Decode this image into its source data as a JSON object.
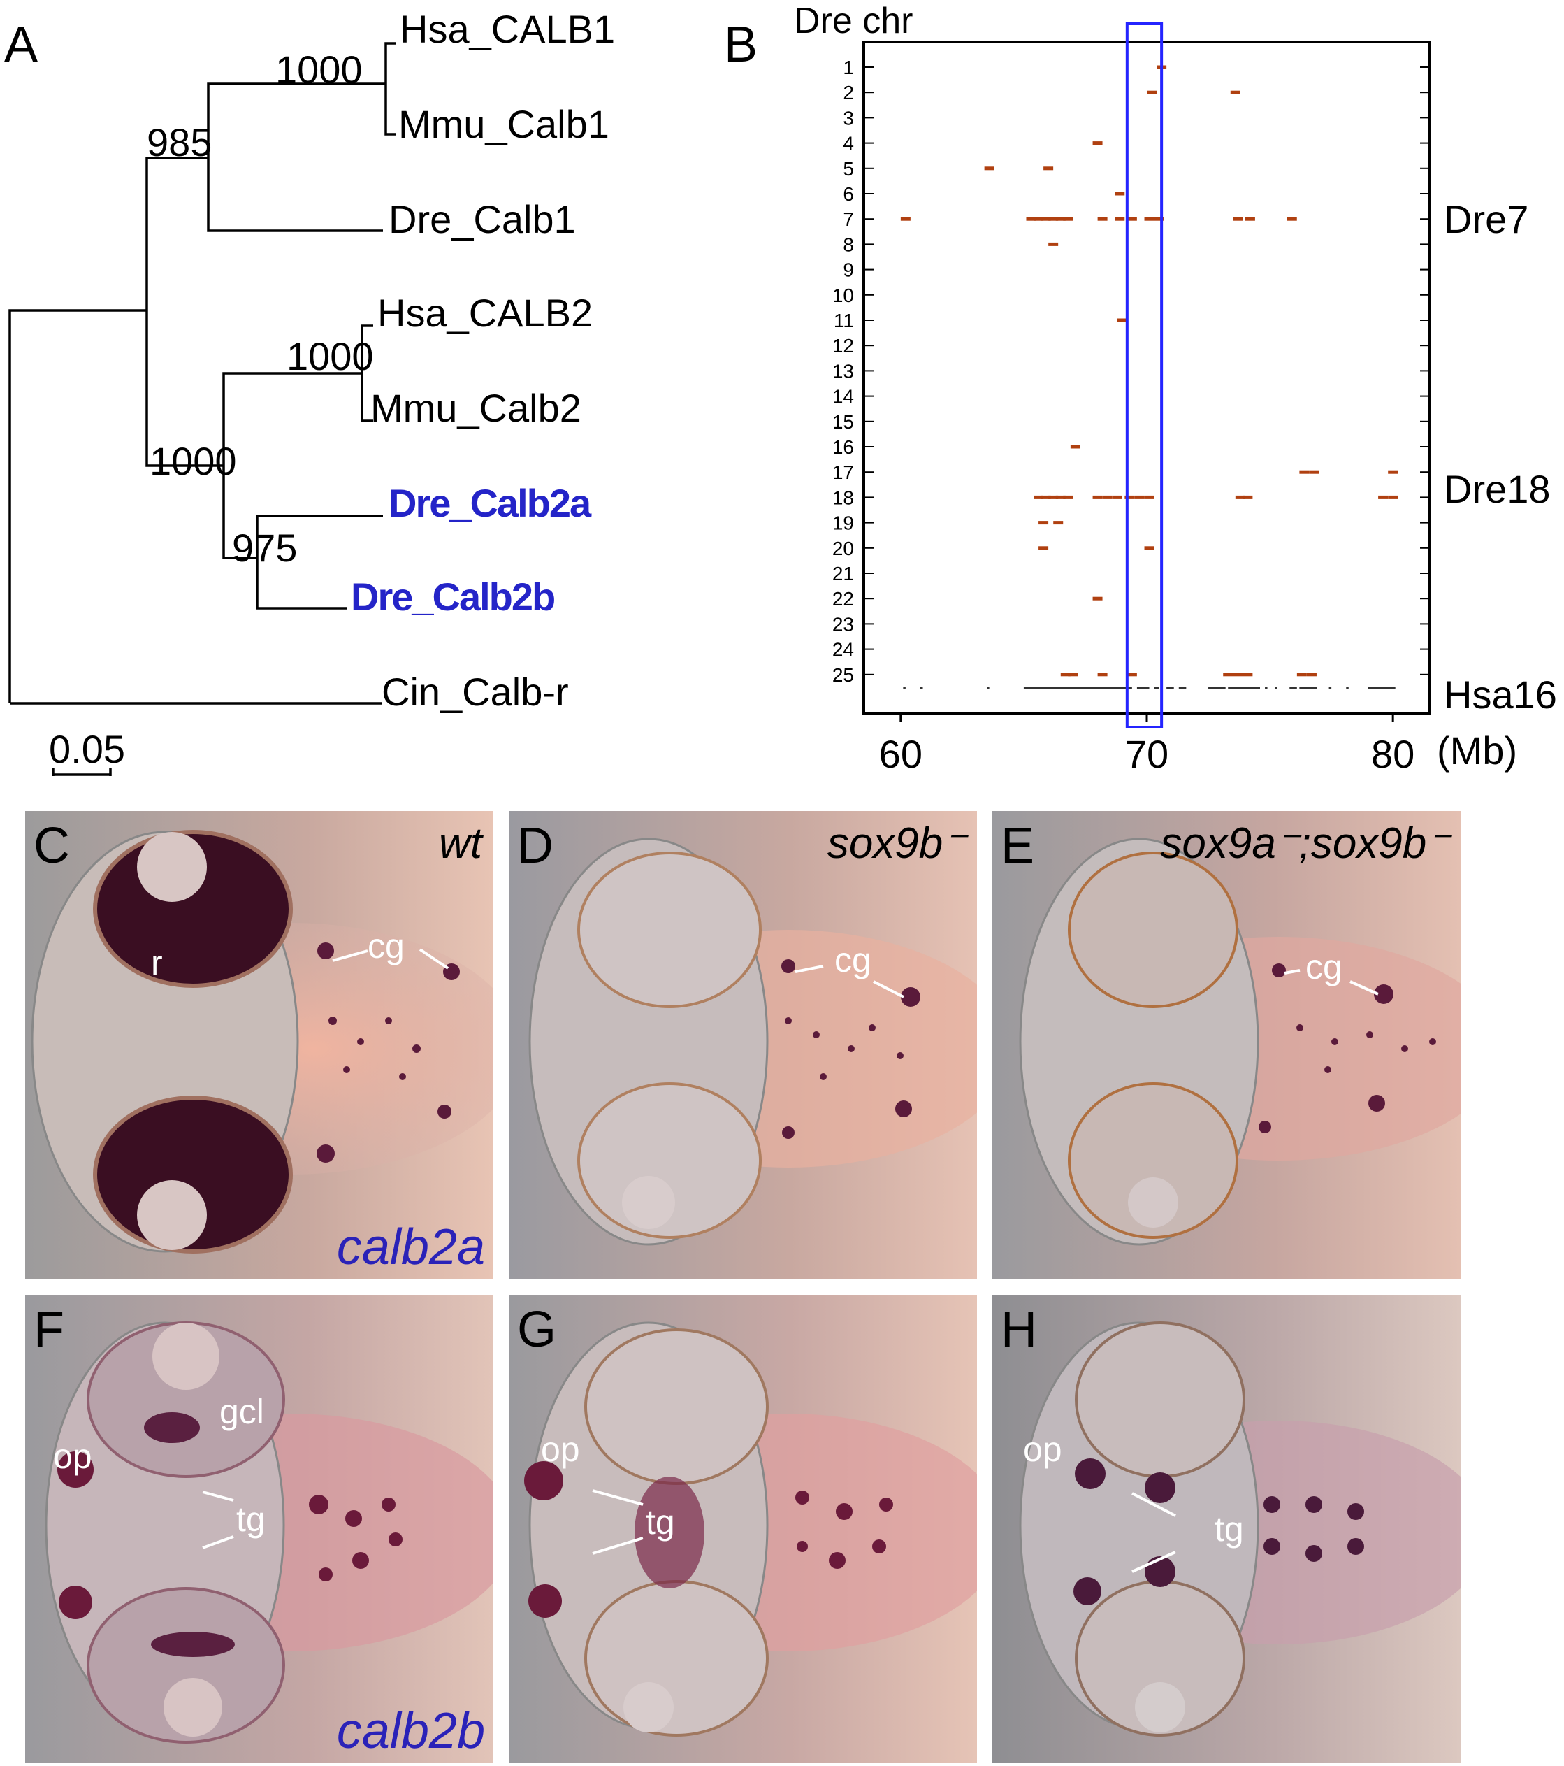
{
  "panels": {
    "a": {
      "label": "A",
      "taxa": [
        "Hsa_CALB1",
        "Mmu_Calb1",
        "Dre_Calb1",
        "Hsa_CALB2",
        "Mmu_Calb2",
        "Dre_Calb2a",
        "Dre_Calb2b",
        "Cin_Calb-r"
      ],
      "bootstrap": [
        "1000",
        "985",
        "1000",
        "1000",
        "975"
      ],
      "scale_label": "0.05",
      "highlight_color": "#2424c8"
    },
    "b": {
      "label": "B",
      "y_title": "Dre chr",
      "x_unit": "(Mb)",
      "right_labels": [
        "Dre7",
        "Dre18",
        "Hsa16"
      ],
      "highlight_color": "#2424ff",
      "dot_color": "#b04010"
    },
    "c": {
      "label": "C",
      "genotype": "wt",
      "gene": "calb2a",
      "annotations": [
        "r",
        "cg"
      ]
    },
    "d": {
      "label": "D",
      "genotype": "sox9b⁻",
      "annotations": [
        "cg"
      ]
    },
    "e": {
      "label": "E",
      "genotype": "sox9a⁻;sox9b⁻",
      "annotations": [
        "cg"
      ]
    },
    "f": {
      "label": "F",
      "gene": "calb2b",
      "annotations": [
        "op",
        "gcl",
        "tg"
      ]
    },
    "g": {
      "label": "G",
      "annotations": [
        "op",
        "tg"
      ]
    },
    "h": {
      "label": "H",
      "annotations": [
        "op",
        "tg"
      ]
    }
  },
  "chart_data": {
    "type": "scatter",
    "xlabel": "(Mb)",
    "ylabel": "Dre chr",
    "xlim": [
      58.5,
      81.5
    ],
    "xticks": [
      60,
      70,
      80
    ],
    "yticks": [
      "1",
      "2",
      "3",
      "4",
      "5",
      "6",
      "7",
      "8",
      "9",
      "10",
      "11",
      "12",
      "13",
      "14",
      "15",
      "16",
      "17",
      "18",
      "19",
      "20",
      "21",
      "22",
      "23",
      "24",
      "25"
    ],
    "highlight_x_range": [
      69.2,
      70.6
    ],
    "points": [
      {
        "chr": 1,
        "x": 70.6
      },
      {
        "chr": 2,
        "x": 70.2
      },
      {
        "chr": 2,
        "x": 73.6
      },
      {
        "chr": 4,
        "x": 68.0
      },
      {
        "chr": 5,
        "x": 63.6
      },
      {
        "chr": 5,
        "x": 66.0
      },
      {
        "chr": 6,
        "x": 68.9
      },
      {
        "chr": 7,
        "x": 60.2
      },
      {
        "chr": 7,
        "x": 65.3
      },
      {
        "chr": 7,
        "x": 65.6
      },
      {
        "chr": 7,
        "x": 65.9
      },
      {
        "chr": 7,
        "x": 66.2
      },
      {
        "chr": 7,
        "x": 66.5
      },
      {
        "chr": 7,
        "x": 66.8
      },
      {
        "chr": 7,
        "x": 68.2
      },
      {
        "chr": 7,
        "x": 68.9
      },
      {
        "chr": 7,
        "x": 69.4
      },
      {
        "chr": 7,
        "x": 70.1
      },
      {
        "chr": 7,
        "x": 70.5
      },
      {
        "chr": 7,
        "x": 73.7
      },
      {
        "chr": 7,
        "x": 74.2
      },
      {
        "chr": 7,
        "x": 75.9
      },
      {
        "chr": 8,
        "x": 66.2
      },
      {
        "chr": 11,
        "x": 69.0
      },
      {
        "chr": 16,
        "x": 67.1
      },
      {
        "chr": 17,
        "x": 76.4
      },
      {
        "chr": 17,
        "x": 76.8
      },
      {
        "chr": 17,
        "x": 80.0
      },
      {
        "chr": 18,
        "x": 65.6
      },
      {
        "chr": 18,
        "x": 65.9
      },
      {
        "chr": 18,
        "x": 66.2
      },
      {
        "chr": 18,
        "x": 66.5
      },
      {
        "chr": 18,
        "x": 66.8
      },
      {
        "chr": 18,
        "x": 68.0
      },
      {
        "chr": 18,
        "x": 68.4
      },
      {
        "chr": 18,
        "x": 68.8
      },
      {
        "chr": 18,
        "x": 69.3
      },
      {
        "chr": 18,
        "x": 69.7
      },
      {
        "chr": 18,
        "x": 70.1
      },
      {
        "chr": 18,
        "x": 73.8
      },
      {
        "chr": 18,
        "x": 74.1
      },
      {
        "chr": 18,
        "x": 79.6
      },
      {
        "chr": 18,
        "x": 80.0
      },
      {
        "chr": 19,
        "x": 65.8
      },
      {
        "chr": 19,
        "x": 66.4
      },
      {
        "chr": 20,
        "x": 65.8
      },
      {
        "chr": 20,
        "x": 70.1
      },
      {
        "chr": 22,
        "x": 68.0
      },
      {
        "chr": 25,
        "x": 66.7
      },
      {
        "chr": 25,
        "x": 67.0
      },
      {
        "chr": 25,
        "x": 68.2
      },
      {
        "chr": 25,
        "x": 69.4
      },
      {
        "chr": 25,
        "x": 73.3
      },
      {
        "chr": 25,
        "x": 73.7
      },
      {
        "chr": 25,
        "x": 74.1
      },
      {
        "chr": 25,
        "x": 76.3
      },
      {
        "chr": 25,
        "x": 76.7
      }
    ],
    "hsa16_segments": [
      [
        60.1,
        60.2
      ],
      [
        60.8,
        60.9
      ],
      [
        63.5,
        63.6
      ],
      [
        65.0,
        69.4
      ],
      [
        69.6,
        70.1
      ],
      [
        70.3,
        70.5
      ],
      [
        70.8,
        71.1
      ],
      [
        71.3,
        71.6
      ],
      [
        72.5,
        73.2
      ],
      [
        73.3,
        74.6
      ],
      [
        74.8,
        74.9
      ],
      [
        75.2,
        75.3
      ],
      [
        75.8,
        76.1
      ],
      [
        76.2,
        76.9
      ],
      [
        77.4,
        77.5
      ],
      [
        78.1,
        78.2
      ],
      [
        79.0,
        80.1
      ]
    ]
  }
}
